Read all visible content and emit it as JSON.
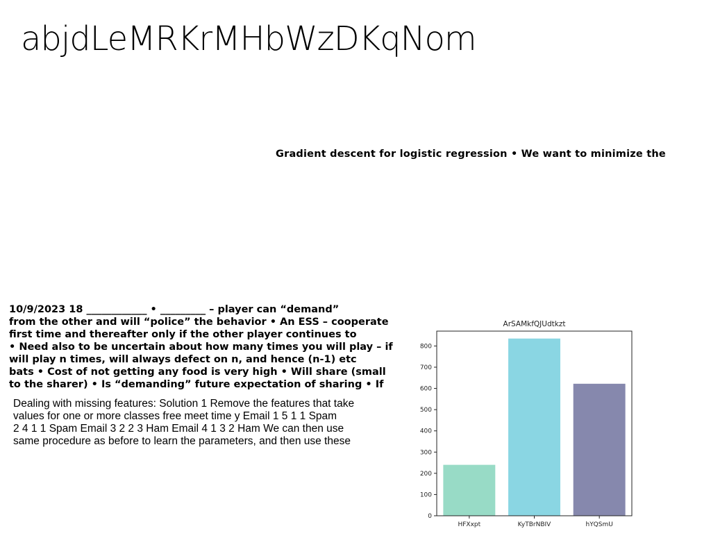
{
  "page": {
    "title": "abjdLeMRKrMHbWzDKqNom",
    "headline": "Gradient descent for logistic regression • We want to minimize the"
  },
  "notes": {
    "lines": [
      "10/9/2023 18 ____________ • _________ – player can “demand”",
      "from the other  and will “police” the behavior • An ESS – cooperate",
      "first time and thereafter only if the other player continues to",
      "• Need also to be uncertain about how many times you will play – if",
      "will play n times, will always defect on n, and hence (n-1) etc",
      "bats • Cost of not getting any food is very  high • Will share (small",
      "to the sharer) • Is “demanding” future expectation of sharing • If"
    ]
  },
  "paragraph": {
    "lines": [
      "Dealing with missing features: Solution 1 Remove the features that take",
      "values for one or more classes free meet time y Email 1 5 1 1 Spam",
      "2 4 1 1 Spam Email 3 2 2 3 Ham Email 4 1 3 2 Ham We can then use",
      "same procedure as before to learn the parameters, and then use these"
    ]
  },
  "chart_data": {
    "type": "bar",
    "title": "ArSAMkfQJUdtkzt",
    "categories": [
      "HFXxpt",
      "KyTBrNBIV",
      "hYQSmU"
    ],
    "values": [
      240,
      835,
      622
    ],
    "colors": [
      "#98dbc6",
      "#8ad6e3",
      "#8688ad"
    ],
    "ylim": [
      0,
      870
    ],
    "yticks": [
      0,
      100,
      200,
      300,
      400,
      500,
      600,
      700,
      800
    ],
    "xlabel": "",
    "ylabel": "",
    "grid": false
  }
}
